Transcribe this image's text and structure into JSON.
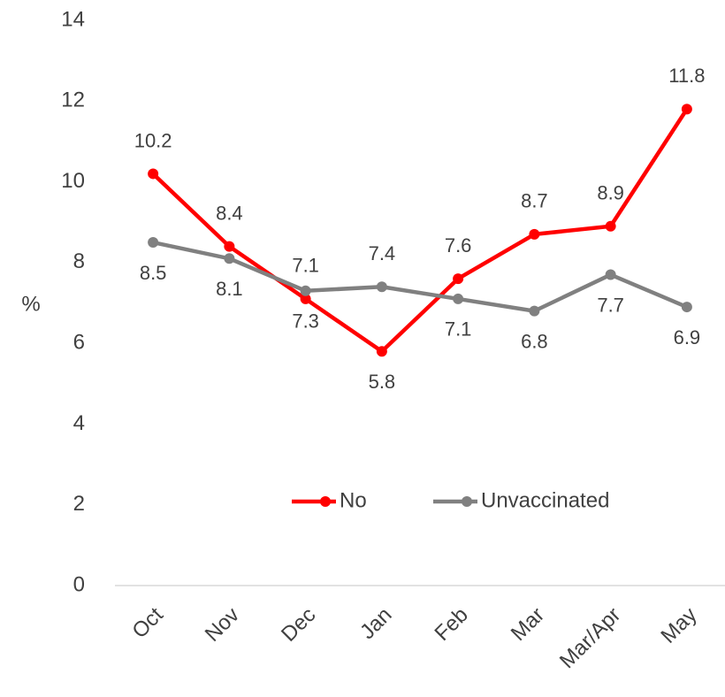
{
  "chart_data": {
    "type": "line",
    "y_label": "%",
    "categories": [
      "Oct",
      "Nov",
      "Dec",
      "Jan",
      "Feb",
      "Mar",
      "Mar/Apr",
      "May"
    ],
    "series": [
      {
        "name": "No",
        "color": "#ff0000",
        "values": [
          10.2,
          8.4,
          7.1,
          5.8,
          7.6,
          8.7,
          8.9,
          11.8
        ]
      },
      {
        "name": "Unvaccinated",
        "color": "#808080",
        "values": [
          8.5,
          8.1,
          7.3,
          7.4,
          7.1,
          6.8,
          7.7,
          6.9
        ]
      }
    ],
    "ylim": [
      0,
      14
    ],
    "yticks": [
      0,
      2,
      4,
      6,
      8,
      10,
      12,
      14
    ],
    "grid": false,
    "legend": "inside-bottom"
  }
}
